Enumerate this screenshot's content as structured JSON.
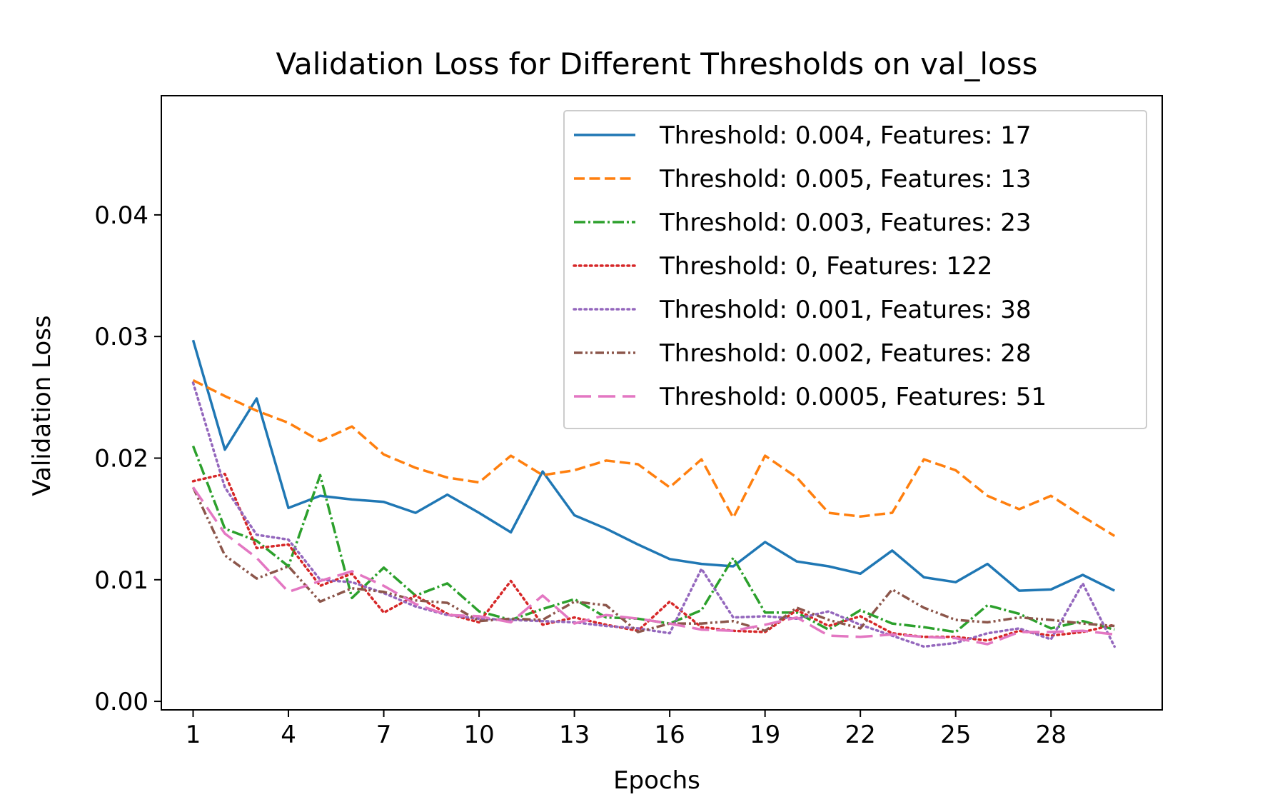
{
  "chart_data": {
    "type": "line",
    "title": "Validation Loss for Different Thresholds on val_loss",
    "xlabel": "Epochs",
    "ylabel": "Validation Loss",
    "xlim": [
      0.0,
      31.5
    ],
    "ylim": [
      -0.0007,
      0.0498
    ],
    "x_ticks": [
      1,
      4,
      7,
      10,
      13,
      16,
      19,
      22,
      25,
      28
    ],
    "y_ticks": [
      0.0,
      0.01,
      0.02,
      0.03,
      0.04
    ],
    "y_tick_labels": [
      "0.00",
      "0.01",
      "0.02",
      "0.03",
      "0.04"
    ],
    "grid": false,
    "legend_position": "top-right",
    "x": [
      1,
      2,
      3,
      4,
      5,
      6,
      7,
      8,
      9,
      10,
      11,
      12,
      13,
      14,
      15,
      16,
      17,
      18,
      19,
      20,
      21,
      22,
      23,
      24,
      25,
      26,
      27,
      28,
      29,
      30
    ],
    "series": [
      {
        "name": "Threshold: 0.004, Features: 17",
        "color": "#1f77b4",
        "style": "solid",
        "values": [
          0.0297,
          0.0207,
          0.0249,
          0.0159,
          0.0169,
          0.0166,
          0.0164,
          0.0155,
          0.017,
          0.0155,
          0.0139,
          0.0189,
          0.0153,
          0.0142,
          0.0129,
          0.0117,
          0.0113,
          0.0111,
          0.0131,
          0.0115,
          0.0111,
          0.0105,
          0.0124,
          0.0102,
          0.0098,
          0.0113,
          0.0091,
          0.0092,
          0.0104,
          0.0091
        ]
      },
      {
        "name": "Threshold: 0.005, Features: 13",
        "color": "#ff7f0e",
        "style": "dashed",
        "values": [
          0.0264,
          0.0251,
          0.0239,
          0.0229,
          0.0214,
          0.0226,
          0.0203,
          0.0192,
          0.0184,
          0.018,
          0.0202,
          0.0186,
          0.019,
          0.0198,
          0.0195,
          0.0176,
          0.0199,
          0.0151,
          0.0202,
          0.0184,
          0.0155,
          0.0152,
          0.0155,
          0.0199,
          0.019,
          0.0169,
          0.0158,
          0.0169,
          0.0152,
          0.0136
        ]
      },
      {
        "name": "Threshold: 0.003, Features: 23",
        "color": "#2ca02c",
        "style": "dashdot",
        "values": [
          0.021,
          0.0142,
          0.0132,
          0.0111,
          0.0186,
          0.0085,
          0.011,
          0.0087,
          0.0097,
          0.0074,
          0.0067,
          0.0076,
          0.0084,
          0.0069,
          0.0068,
          0.0064,
          0.0075,
          0.0118,
          0.0073,
          0.0073,
          0.0059,
          0.0075,
          0.0064,
          0.0061,
          0.0057,
          0.0079,
          0.0072,
          0.006,
          0.0066,
          0.0059
        ]
      },
      {
        "name": "Threshold: 0, Features: 122",
        "color": "#d62728",
        "style": "dotted",
        "values": [
          0.0181,
          0.0187,
          0.0126,
          0.0129,
          0.0095,
          0.0105,
          0.0073,
          0.0087,
          0.0072,
          0.0065,
          0.0099,
          0.0063,
          0.0069,
          0.0063,
          0.0058,
          0.0082,
          0.0061,
          0.0058,
          0.0057,
          0.0075,
          0.0062,
          0.007,
          0.0056,
          0.0053,
          0.0053,
          0.005,
          0.0058,
          0.0054,
          0.0057,
          0.0063
        ]
      },
      {
        "name": "Threshold: 0.001, Features: 38",
        "color": "#9467bd",
        "style": "dotted",
        "values": [
          0.0262,
          0.0176,
          0.0137,
          0.0133,
          0.01,
          0.0098,
          0.0089,
          0.0078,
          0.0071,
          0.0068,
          0.0067,
          0.0066,
          0.0065,
          0.0062,
          0.006,
          0.0056,
          0.0109,
          0.0069,
          0.007,
          0.0068,
          0.0074,
          0.0063,
          0.0054,
          0.0045,
          0.0048,
          0.0056,
          0.006,
          0.0051,
          0.0097,
          0.0045
        ]
      },
      {
        "name": "Threshold: 0.002, Features: 28",
        "color": "#8c564b",
        "style": "dashdotdot",
        "values": [
          0.0176,
          0.012,
          0.0101,
          0.0111,
          0.0082,
          0.0093,
          0.009,
          0.0083,
          0.0081,
          0.0066,
          0.0068,
          0.0067,
          0.0082,
          0.0079,
          0.0057,
          0.0064,
          0.0064,
          0.0066,
          0.0058,
          0.0077,
          0.0067,
          0.006,
          0.0092,
          0.0077,
          0.0067,
          0.0065,
          0.0069,
          0.0067,
          0.0064,
          0.0062
        ]
      },
      {
        "name": "Threshold: 0.0005, Features: 51",
        "color": "#e377c2",
        "style": "longdash",
        "values": [
          0.0176,
          0.0138,
          0.0118,
          0.009,
          0.0099,
          0.0107,
          0.0095,
          0.008,
          0.0071,
          0.007,
          0.0065,
          0.0087,
          0.0064,
          0.0071,
          0.0068,
          0.0064,
          0.0059,
          0.0058,
          0.0063,
          0.0069,
          0.0054,
          0.0053,
          0.0055,
          0.0053,
          0.0052,
          0.0047,
          0.0057,
          0.0057,
          0.0058,
          0.0055
        ]
      }
    ]
  }
}
